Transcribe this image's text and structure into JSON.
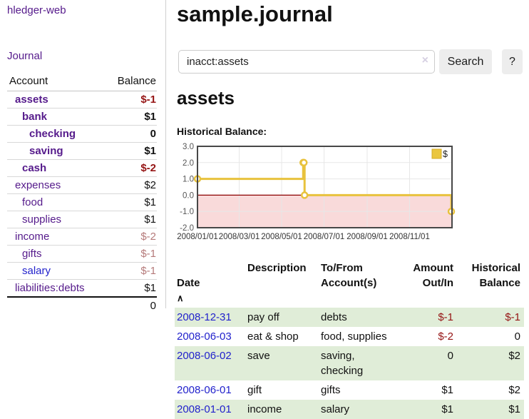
{
  "app": {
    "title": "hledger-web"
  },
  "sidebar": {
    "journal_link": "Journal",
    "accounts_table": {
      "headers": {
        "account": "Account",
        "balance": "Balance"
      },
      "rows": [
        {
          "account": "assets",
          "depth": 1,
          "balance": "$-1",
          "bold": true,
          "balance_color": "neg"
        },
        {
          "account": "bank",
          "depth": 2,
          "balance": "$1",
          "bold": true,
          "balance_color": "pos"
        },
        {
          "account": "checking",
          "depth": 3,
          "balance": "0",
          "bold": true,
          "balance_color": "pos"
        },
        {
          "account": "saving",
          "depth": 3,
          "balance": "$1",
          "bold": true,
          "balance_color": "pos"
        },
        {
          "account": "cash",
          "depth": 2,
          "balance": "$-2",
          "bold": true,
          "balance_color": "neg"
        },
        {
          "account": "expenses",
          "depth": 1,
          "balance": "$2",
          "bold": false,
          "balance_color": "pos"
        },
        {
          "account": "food",
          "depth": 2,
          "balance": "$1",
          "bold": false,
          "balance_color": "pos"
        },
        {
          "account": "supplies",
          "depth": 2,
          "balance": "$1",
          "bold": false,
          "balance_color": "pos"
        },
        {
          "account": "income",
          "depth": 1,
          "balance": "$-2",
          "bold": false,
          "balance_color": "negmuted"
        },
        {
          "account": "gifts",
          "depth": 2,
          "balance": "$-1",
          "bold": false,
          "balance_color": "negmuted"
        },
        {
          "account": "salary",
          "depth": 2,
          "balance": "$-1",
          "bold": false,
          "balance_color": "negmuted",
          "link_color": "blue"
        },
        {
          "account": "liabilities:debts",
          "depth": 1,
          "balance": "$1",
          "bold": false,
          "balance_color": "pos"
        }
      ],
      "total": "0"
    }
  },
  "main": {
    "title": "sample.journal",
    "search": {
      "value": "inacct:assets",
      "clear_icon": "×",
      "button_label": "Search",
      "help_label": "?"
    },
    "account_heading": "assets",
    "chart_label": "Historical Balance:"
  },
  "chart_data": {
    "type": "line",
    "step": true,
    "title": "Historical Balance:",
    "series": [
      {
        "name": "$",
        "color": "#e8c23d",
        "points": [
          {
            "date": "2008-01-01",
            "day": 0,
            "value": 1
          },
          {
            "date": "2008-06-01",
            "day": 152,
            "value": 2
          },
          {
            "date": "2008-06-02",
            "day": 153,
            "value": 2
          },
          {
            "date": "2008-06-03",
            "day": 154,
            "value": 0
          },
          {
            "date": "2008-12-31",
            "day": 365,
            "value": -1
          }
        ]
      }
    ],
    "x_ticks": [
      {
        "label": "2008/01/01",
        "day": 0
      },
      {
        "label": "2008/03/01",
        "day": 60
      },
      {
        "label": "2008/05/01",
        "day": 121
      },
      {
        "label": "2008/07/01",
        "day": 182
      },
      {
        "label": "2008/09/01",
        "day": 244
      },
      {
        "label": "2008/11/01",
        "day": 305
      }
    ],
    "y_ticks": [
      3.0,
      2.0,
      1.0,
      0.0,
      -1.0,
      -2.0
    ],
    "ylim": [
      -2,
      3
    ],
    "xlim_days": [
      0,
      366
    ],
    "legend": {
      "label": "$",
      "position": "top-right"
    },
    "colors": {
      "line": "#e8c23d",
      "marker_fill": "#ffffff",
      "negative_region": "#f9dada",
      "zero_line": "#8b0000",
      "grid": "#e7e7e7",
      "border": "#474747",
      "y_label": "#555555",
      "x_label": "#333333"
    }
  },
  "transactions": {
    "headers": {
      "date": "Date",
      "sort_icon": "∧",
      "description": "Description",
      "tofrom": "To/From\nAccount(s)",
      "amount": "Amount\nOut/In",
      "balance": "Historical\nBalance"
    },
    "rows": [
      {
        "date": "2008-12-31",
        "description": "pay off",
        "tofrom": "debts",
        "amount": "$-1",
        "amount_neg": true,
        "balance": "$-1",
        "balance_neg": true
      },
      {
        "date": "2008-06-03",
        "description": "eat & shop",
        "tofrom": "food, supplies",
        "amount": "$-2",
        "amount_neg": true,
        "balance": "0",
        "balance_neg": false
      },
      {
        "date": "2008-06-02",
        "description": "save",
        "tofrom": "saving, checking",
        "amount": "0",
        "amount_neg": false,
        "balance": "$2",
        "balance_neg": false
      },
      {
        "date": "2008-06-01",
        "description": "gift",
        "tofrom": "gifts",
        "amount": "$1",
        "amount_neg": false,
        "balance": "$2",
        "balance_neg": false
      },
      {
        "date": "2008-01-01",
        "description": "income",
        "tofrom": "salary",
        "amount": "$1",
        "amount_neg": false,
        "balance": "$1",
        "balance_neg": false
      }
    ]
  }
}
